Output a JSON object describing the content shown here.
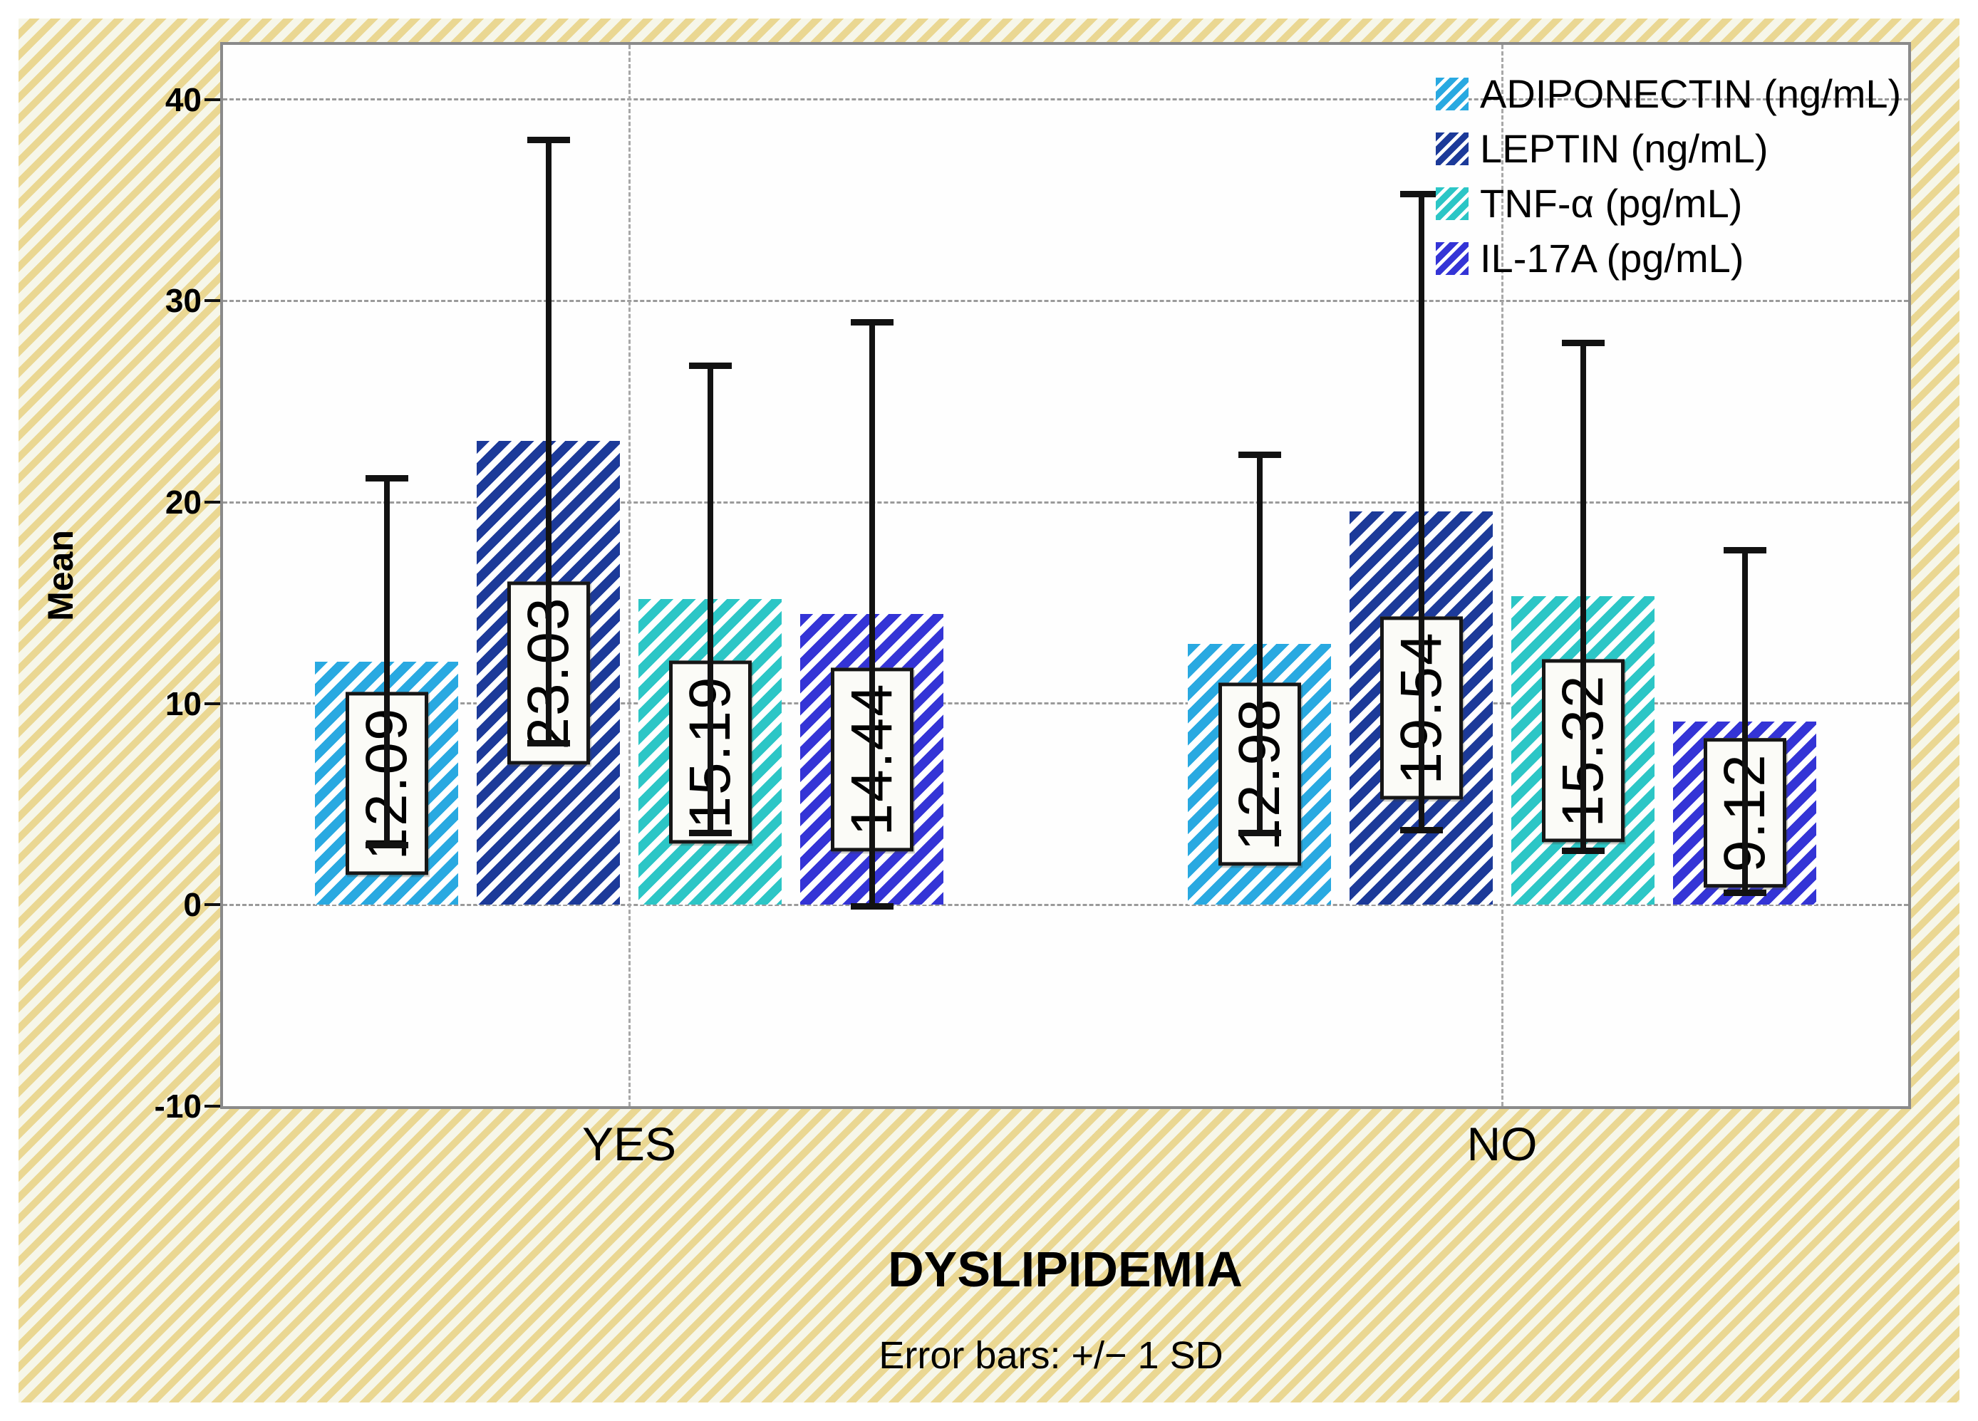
{
  "chart_data": {
    "type": "bar",
    "title": "",
    "xlabel": "DYSLIPIDEMIA",
    "ylabel": "Mean",
    "footnote": "Error bars: +/− 1 SD",
    "ylim": [
      -10,
      42.72
    ],
    "yticks": [
      40,
      30,
      20,
      10,
      0,
      -10
    ],
    "grid_y": [
      40,
      30,
      20,
      10,
      0
    ],
    "categories": [
      "YES",
      "NO"
    ],
    "legend_position": "top-right-inside",
    "grid": "dashed",
    "colors": {
      "background_stripe": "#ead792",
      "background_base": "#f6f6e9",
      "panel_border": "#8a8a8a",
      "error_bar": "#121212"
    },
    "series": [
      {
        "name": "ADIPONECTIN (ng/mL)",
        "color": "#29a9e1",
        "means": [
          12.09,
          12.98
        ],
        "sd": [
          9.1,
          9.4
        ],
        "labels": [
          "12.09",
          "12.98"
        ]
      },
      {
        "name": "LEPTIN (ng/mL)",
        "color": "#1c3a99",
        "means": [
          23.03,
          19.54
        ],
        "sd": [
          15.0,
          15.8
        ],
        "labels": [
          "23.03",
          "19.54"
        ]
      },
      {
        "name": "TNF-α (pg/mL)",
        "color": "#2cc6c6",
        "means": [
          15.19,
          15.32
        ],
        "sd": [
          11.6,
          12.6
        ],
        "labels": [
          "15.19",
          "15.32"
        ]
      },
      {
        "name": "IL-17A (pg/mL)",
        "color": "#3434d6",
        "means": [
          14.44,
          9.12
        ],
        "sd": [
          14.5,
          8.5
        ],
        "labels": [
          "14.44",
          "9.12"
        ]
      }
    ]
  }
}
